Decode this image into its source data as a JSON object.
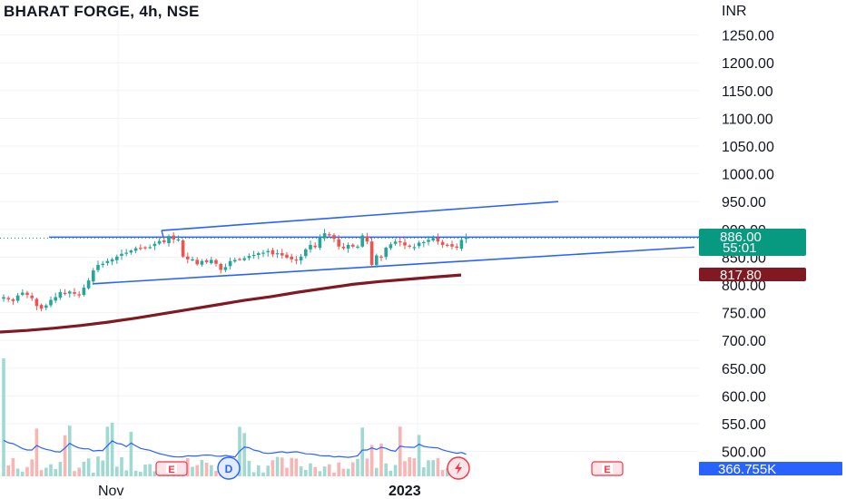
{
  "header": {
    "title": "BHARAT FORGE, 4h, NSE"
  },
  "currency": "INR",
  "price_axis": {
    "labels": [
      "1250.00",
      "1200.00",
      "1150.00",
      "1100.00",
      "1050.00",
      "1000.00",
      "950.00",
      "900.00",
      "850.00",
      "800.00",
      "750.00",
      "700.00",
      "650.00",
      "600.00",
      "550.00",
      "500.00"
    ]
  },
  "time_axis": {
    "labels": [
      "Nov",
      "2023"
    ]
  },
  "badges": {
    "last_price": "886.00",
    "countdown": "55:01",
    "ma_value": "817.80",
    "volume_ma": "366.755K"
  },
  "event_markers": [
    "E",
    "D",
    "E"
  ],
  "colors": {
    "up": "#26a69a",
    "down": "#ef5350",
    "channel": "#2962ff",
    "ma": "#801922",
    "volume_ma": "#2962ff",
    "price_line": "#089981"
  },
  "chart_data": {
    "type": "candlestick",
    "title": "BHARAT FORGE, 4h, NSE",
    "interval": "4h",
    "exchange": "NSE",
    "currency": "INR",
    "ylim": [
      480,
      1270
    ],
    "y_ticks": [
      500,
      550,
      600,
      650,
      700,
      750,
      800,
      850,
      900,
      950,
      1000,
      1050,
      1100,
      1150,
      1200,
      1250
    ],
    "x_tick_labels": [
      "Nov",
      "2023"
    ],
    "last_price": 886.0,
    "moving_average_last": 817.8,
    "volume_ma_last": "366.755K",
    "close_series": [
      778,
      774,
      771,
      781,
      786,
      782,
      776,
      762,
      757,
      763,
      773,
      778,
      787,
      785,
      788,
      784,
      781,
      795,
      808,
      826,
      836,
      838,
      843,
      846,
      851,
      856,
      858,
      862,
      866,
      866,
      867,
      868,
      874,
      879,
      877,
      888,
      882,
      882,
      851,
      846,
      846,
      837,
      843,
      841,
      845,
      838,
      827,
      832,
      843,
      845,
      846,
      848,
      852,
      854,
      857,
      858,
      861,
      855,
      857,
      853,
      849,
      846,
      844,
      851,
      864,
      872,
      868,
      886,
      893,
      889,
      883,
      869,
      866,
      872,
      869,
      869,
      889,
      878,
      836,
      853,
      849,
      867,
      873,
      878,
      877,
      871,
      869,
      868,
      876,
      877,
      881,
      884,
      878,
      872,
      872,
      869,
      867,
      881,
      886
    ],
    "channel_upper": {
      "start": [
        2,
        898
      ],
      "end": [
        8,
        950
      ]
    },
    "channel_lower": {
      "start": [
        2,
        802
      ],
      "end": [
        8,
        868
      ]
    },
    "horizontal_resistance": 886,
    "moving_average": [
      715,
      718,
      722,
      727,
      733,
      740,
      748,
      756,
      764,
      772,
      779,
      787,
      794,
      801,
      806,
      810,
      814,
      817.8
    ]
  }
}
